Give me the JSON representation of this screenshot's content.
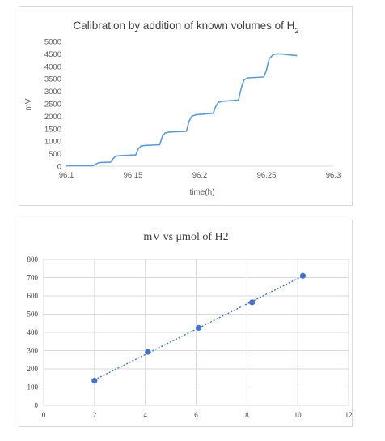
{
  "chart_data": [
    {
      "type": "line",
      "title": "Calibration by addition of known volumes of H",
      "title_subscript": "2",
      "xlabel": "time(h)",
      "ylabel": "mV",
      "xlim": [
        96.1,
        96.3
      ],
      "ylim": [
        0,
        5000
      ],
      "x_ticks": [
        "96.1",
        "96.15",
        "96.2",
        "96.25",
        "96.3"
      ],
      "y_ticks": [
        "0",
        "500",
        "1000",
        "1500",
        "2000",
        "2500",
        "3000",
        "3500",
        "4000",
        "4500",
        "5000"
      ],
      "grid": false,
      "legend": "none",
      "series": [
        {
          "color": "#5b9bd5",
          "x": [
            96.1,
            96.12,
            96.122,
            96.124,
            96.126,
            96.133,
            96.135,
            96.137,
            96.14,
            96.152,
            96.154,
            96.156,
            96.159,
            96.17,
            96.172,
            96.174,
            96.177,
            96.19,
            96.192,
            96.194,
            96.197,
            96.21,
            96.212,
            96.214,
            96.217,
            96.229,
            96.231,
            96.233,
            96.236,
            96.248,
            96.25,
            96.252,
            96.255,
            96.258,
            96.26,
            96.262,
            96.265,
            96.273
          ],
          "y": [
            20,
            20,
            80,
            130,
            150,
            160,
            300,
            400,
            420,
            450,
            700,
            810,
            830,
            860,
            1200,
            1330,
            1370,
            1400,
            1800,
            2000,
            2060,
            2120,
            2400,
            2560,
            2600,
            2650,
            3100,
            3450,
            3540,
            3570,
            3850,
            4300,
            4470,
            4500,
            4500,
            4490,
            4470,
            4430
          ]
        }
      ]
    },
    {
      "type": "scatter",
      "title": "mV vs μmol of H2",
      "xlim": [
        0,
        12
      ],
      "ylim": [
        0,
        800
      ],
      "x_ticks": [
        "0",
        "2",
        "4",
        "6",
        "8",
        "10",
        "12"
      ],
      "y_ticks": [
        "0",
        "100",
        "200",
        "300",
        "400",
        "500",
        "600",
        "700",
        "800"
      ],
      "grid": true,
      "legend": "none",
      "trendline": "linear, dotted",
      "series": [
        {
          "color": "#4472c4",
          "x": [
            2.0,
            4.1,
            6.1,
            8.2,
            10.2
          ],
          "y": [
            135,
            293,
            425,
            565,
            710
          ]
        }
      ]
    }
  ]
}
